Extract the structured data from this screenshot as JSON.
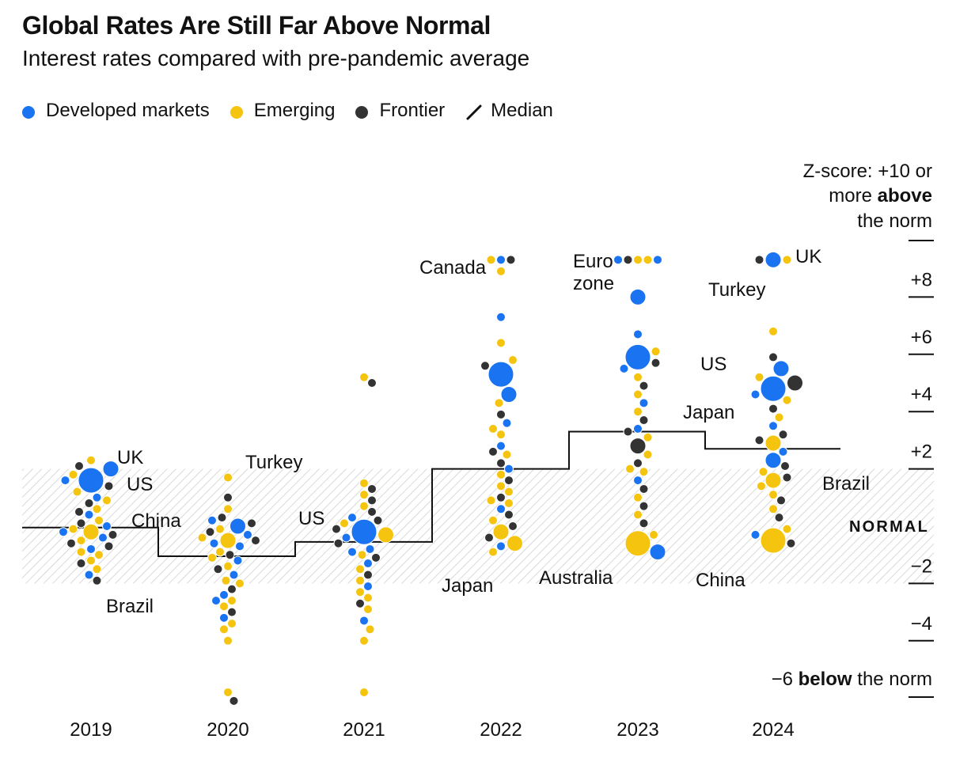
{
  "title": "Global Rates Are Still Far Above Normal",
  "subtitle": "Interest rates compared with pre-pandemic average",
  "legend": [
    {
      "label": "Developed markets",
      "color": "#1a73f0",
      "kind": "dot"
    },
    {
      "label": "Emerging",
      "color": "#f5c40f",
      "kind": "dot"
    },
    {
      "label": "Frontier",
      "color": "#333333",
      "kind": "dot"
    },
    {
      "label": "Median",
      "color": "#111111",
      "kind": "line"
    }
  ],
  "chart_data": {
    "type": "scatter",
    "categories": [
      "2019",
      "2020",
      "2021",
      "2022",
      "2023",
      "2024"
    ],
    "ylabel": "Z-score",
    "ylim": [
      -6,
      10
    ],
    "y_ticks": [
      "+8",
      "+6",
      "+4",
      "+2",
      "−2",
      "−4"
    ],
    "top_label": {
      "line1": "Z-score: +10 or",
      "line2a": "more ",
      "line2b": "above",
      "line3": "the norm"
    },
    "bottom_label": {
      "a": "−6 ",
      "b": "below",
      "c": " the norm"
    },
    "normal_band": {
      "label": "NORMAL",
      "range": [
        -2,
        2
      ]
    },
    "median": [
      -0.05,
      -1.05,
      -0.55,
      2.0,
      3.3,
      2.7
    ],
    "colors": {
      "developed": "#1a73f0",
      "emerging": "#f5c40f",
      "frontier": "#333333",
      "median": "#111111"
    },
    "series": [
      {
        "category": "2019",
        "points": [
          {
            "y": 2.0,
            "g": "developed",
            "s": 1,
            "label": "UK"
          },
          {
            "y": 1.6,
            "g": "developed",
            "s": 2,
            "label": "US"
          },
          {
            "y": -0.2,
            "g": "emerging",
            "s": 1,
            "label": "Brazil"
          },
          {
            "y": 2.3,
            "g": "emerging"
          },
          {
            "y": 2.1,
            "g": "frontier"
          },
          {
            "y": 1.8,
            "g": "emerging"
          },
          {
            "y": 1.6,
            "g": "developed"
          },
          {
            "y": 1.4,
            "g": "frontier"
          },
          {
            "y": 1.2,
            "g": "emerging"
          },
          {
            "y": 1.0,
            "g": "developed"
          },
          {
            "y": 0.8,
            "g": "frontier"
          },
          {
            "y": 0.6,
            "g": "emerging"
          },
          {
            "y": 0.4,
            "g": "developed"
          },
          {
            "y": 0.2,
            "g": "emerging"
          },
          {
            "y": 0.1,
            "g": "frontier"
          },
          {
            "y": 0.0,
            "g": "developed"
          },
          {
            "y": -0.1,
            "g": "emerging"
          },
          {
            "y": -0.3,
            "g": "frontier"
          },
          {
            "y": -0.4,
            "g": "developed"
          },
          {
            "y": -0.5,
            "g": "emerging"
          },
          {
            "y": -0.6,
            "g": "frontier"
          },
          {
            "y": -0.8,
            "g": "developed"
          },
          {
            "y": -1.0,
            "g": "emerging"
          },
          {
            "y": -1.2,
            "g": "emerging"
          },
          {
            "y": -1.3,
            "g": "frontier"
          },
          {
            "y": -1.5,
            "g": "emerging"
          },
          {
            "y": -1.7,
            "g": "developed"
          },
          {
            "y": -1.9,
            "g": "frontier"
          },
          {
            "y": -0.7,
            "g": "frontier"
          },
          {
            "y": 0.5,
            "g": "frontier"
          },
          {
            "y": -0.2,
            "g": "developed"
          },
          {
            "y": 0.9,
            "g": "emerging"
          },
          {
            "y": -0.9,
            "g": "emerging"
          }
        ]
      },
      {
        "category": "2020",
        "points": [
          {
            "y": 1.7,
            "g": "emerging",
            "label": "Turkey"
          },
          {
            "y": -0.5,
            "g": "emerging",
            "s": 1,
            "label": "China"
          },
          {
            "y": 1.0,
            "g": "frontier"
          },
          {
            "y": 0.6,
            "g": "emerging"
          },
          {
            "y": 0.3,
            "g": "frontier"
          },
          {
            "y": 0.2,
            "g": "developed"
          },
          {
            "y": 0.0,
            "g": "developed",
            "s": 1
          },
          {
            "y": -0.1,
            "g": "emerging"
          },
          {
            "y": -0.2,
            "g": "frontier"
          },
          {
            "y": -0.3,
            "g": "developed"
          },
          {
            "y": -0.4,
            "g": "emerging"
          },
          {
            "y": -0.5,
            "g": "frontier"
          },
          {
            "y": -0.7,
            "g": "developed"
          },
          {
            "y": -0.9,
            "g": "emerging"
          },
          {
            "y": -1.0,
            "g": "frontier"
          },
          {
            "y": -1.2,
            "g": "developed"
          },
          {
            "y": -1.4,
            "g": "emerging"
          },
          {
            "y": -1.5,
            "g": "frontier"
          },
          {
            "y": -1.7,
            "g": "developed"
          },
          {
            "y": -1.9,
            "g": "emerging"
          },
          {
            "y": -2.0,
            "g": "emerging"
          },
          {
            "y": -2.2,
            "g": "frontier"
          },
          {
            "y": -2.4,
            "g": "developed"
          },
          {
            "y": -2.6,
            "g": "emerging"
          },
          {
            "y": -2.8,
            "g": "emerging"
          },
          {
            "y": -3.0,
            "g": "frontier"
          },
          {
            "y": -3.2,
            "g": "developed"
          },
          {
            "y": -3.4,
            "g": "emerging"
          },
          {
            "y": -3.6,
            "g": "emerging"
          },
          {
            "y": -4.0,
            "g": "emerging"
          },
          {
            "y": -5.8,
            "g": "emerging"
          },
          {
            "y": -6.1,
            "g": "frontier"
          },
          {
            "y": 0.1,
            "g": "frontier"
          },
          {
            "y": -0.6,
            "g": "developed"
          },
          {
            "y": -1.1,
            "g": "emerging"
          },
          {
            "y": -2.6,
            "g": "developed"
          }
        ]
      },
      {
        "category": "2021",
        "points": [
          {
            "y": -0.2,
            "g": "developed",
            "s": 2,
            "label": "US"
          },
          {
            "y": 5.2,
            "g": "emerging"
          },
          {
            "y": 5.0,
            "g": "frontier"
          },
          {
            "y": 1.5,
            "g": "emerging"
          },
          {
            "y": 1.3,
            "g": "frontier"
          },
          {
            "y": 1.1,
            "g": "emerging"
          },
          {
            "y": 0.9,
            "g": "frontier"
          },
          {
            "y": 0.7,
            "g": "emerging"
          },
          {
            "y": 0.5,
            "g": "frontier"
          },
          {
            "y": 0.3,
            "g": "developed"
          },
          {
            "y": 0.1,
            "g": "emerging"
          },
          {
            "y": -0.1,
            "g": "frontier"
          },
          {
            "y": -0.3,
            "g": "emerging",
            "s": 1
          },
          {
            "y": -0.4,
            "g": "developed"
          },
          {
            "y": -0.6,
            "g": "frontier"
          },
          {
            "y": -0.8,
            "g": "developed"
          },
          {
            "y": -1.0,
            "g": "emerging"
          },
          {
            "y": -1.1,
            "g": "frontier"
          },
          {
            "y": -1.3,
            "g": "developed"
          },
          {
            "y": -1.5,
            "g": "emerging"
          },
          {
            "y": -1.7,
            "g": "frontier"
          },
          {
            "y": -1.9,
            "g": "emerging"
          },
          {
            "y": -2.1,
            "g": "developed"
          },
          {
            "y": -2.3,
            "g": "emerging"
          },
          {
            "y": -2.5,
            "g": "emerging"
          },
          {
            "y": -2.7,
            "g": "frontier"
          },
          {
            "y": -2.9,
            "g": "emerging"
          },
          {
            "y": -3.3,
            "g": "developed"
          },
          {
            "y": -3.6,
            "g": "emerging"
          },
          {
            "y": -4.0,
            "g": "emerging"
          },
          {
            "y": -5.8,
            "g": "emerging"
          },
          {
            "y": 0.2,
            "g": "frontier"
          },
          {
            "y": -0.9,
            "g": "developed"
          }
        ]
      },
      {
        "category": "2022",
        "points": [
          {
            "y": 8.9,
            "g": "emerging"
          },
          {
            "y": 9.3,
            "g": "developed"
          },
          {
            "y": 9.3,
            "g": "frontier"
          },
          {
            "y": 9.3,
            "g": "emerging"
          },
          {
            "y": 7.3,
            "g": "developed",
            "label": "Canada"
          },
          {
            "y": 5.3,
            "g": "developed",
            "s": 2
          },
          {
            "y": 4.6,
            "g": "developed",
            "s": 1
          },
          {
            "y": 6.4,
            "g": "emerging"
          },
          {
            "y": 5.8,
            "g": "emerging"
          },
          {
            "y": 5.6,
            "g": "frontier"
          },
          {
            "y": 4.3,
            "g": "emerging"
          },
          {
            "y": 3.9,
            "g": "frontier"
          },
          {
            "y": 3.6,
            "g": "developed"
          },
          {
            "y": 3.2,
            "g": "emerging"
          },
          {
            "y": 2.8,
            "g": "developed"
          },
          {
            "y": 2.5,
            "g": "emerging"
          },
          {
            "y": 2.2,
            "g": "frontier"
          },
          {
            "y": 2.0,
            "g": "developed"
          },
          {
            "y": 1.8,
            "g": "emerging"
          },
          {
            "y": 1.6,
            "g": "frontier"
          },
          {
            "y": 1.4,
            "g": "emerging"
          },
          {
            "y": 1.2,
            "g": "emerging"
          },
          {
            "y": 1.0,
            "g": "frontier"
          },
          {
            "y": 0.8,
            "g": "emerging"
          },
          {
            "y": 0.6,
            "g": "developed",
            "label": "Australia"
          },
          {
            "y": 0.4,
            "g": "frontier"
          },
          {
            "y": 0.2,
            "g": "emerging"
          },
          {
            "y": 0.0,
            "g": "frontier"
          },
          {
            "y": -0.2,
            "g": "emerging",
            "s": 1
          },
          {
            "y": -0.4,
            "g": "frontier"
          },
          {
            "y": -0.6,
            "g": "emerging",
            "s": 1
          },
          {
            "y": -0.7,
            "g": "developed",
            "label": "Japan"
          },
          {
            "y": -0.9,
            "g": "emerging"
          },
          {
            "y": 2.6,
            "g": "frontier"
          },
          {
            "y": 3.4,
            "g": "emerging"
          },
          {
            "y": 0.9,
            "g": "emerging"
          }
        ]
      },
      {
        "category": "2023",
        "points": [
          {
            "y": 9.3,
            "g": "emerging"
          },
          {
            "y": 9.3,
            "g": "emerging"
          },
          {
            "y": 9.3,
            "g": "frontier"
          },
          {
            "y": 9.3,
            "g": "developed"
          },
          {
            "y": 9.3,
            "g": "developed"
          },
          {
            "y": 8.0,
            "g": "developed",
            "s": 1,
            "label": "Euro zone"
          },
          {
            "y": 6.7,
            "g": "developed"
          },
          {
            "y": 5.9,
            "g": "developed",
            "s": 2
          },
          {
            "y": 6.1,
            "g": "emerging"
          },
          {
            "y": 5.7,
            "g": "frontier"
          },
          {
            "y": 5.5,
            "g": "developed"
          },
          {
            "y": 5.2,
            "g": "emerging"
          },
          {
            "y": 4.9,
            "g": "frontier"
          },
          {
            "y": 4.6,
            "g": "emerging"
          },
          {
            "y": 4.3,
            "g": "developed"
          },
          {
            "y": 4.0,
            "g": "emerging"
          },
          {
            "y": 3.7,
            "g": "frontier"
          },
          {
            "y": 3.4,
            "g": "developed"
          },
          {
            "y": 3.1,
            "g": "emerging"
          },
          {
            "y": 2.8,
            "g": "frontier",
            "s": 1
          },
          {
            "y": 2.5,
            "g": "emerging"
          },
          {
            "y": 2.2,
            "g": "frontier"
          },
          {
            "y": 1.9,
            "g": "emerging"
          },
          {
            "y": 1.6,
            "g": "developed"
          },
          {
            "y": 1.3,
            "g": "frontier"
          },
          {
            "y": 1.0,
            "g": "emerging"
          },
          {
            "y": 0.7,
            "g": "frontier"
          },
          {
            "y": 0.4,
            "g": "emerging"
          },
          {
            "y": 0.1,
            "g": "frontier"
          },
          {
            "y": -0.3,
            "g": "emerging"
          },
          {
            "y": -0.6,
            "g": "emerging",
            "s": 2
          },
          {
            "y": -0.9,
            "g": "developed",
            "s": 1
          },
          {
            "y": 2.0,
            "g": "emerging"
          },
          {
            "y": 3.3,
            "g": "frontier"
          }
        ]
      },
      {
        "category": "2024",
        "points": [
          {
            "y": 9.3,
            "g": "developed",
            "s": 1,
            "label": "UK"
          },
          {
            "y": 9.3,
            "g": "emerging"
          },
          {
            "y": 9.3,
            "g": "frontier"
          },
          {
            "y": 6.8,
            "g": "emerging",
            "label": "Turkey"
          },
          {
            "y": 4.8,
            "g": "developed",
            "s": 2,
            "label": "US"
          },
          {
            "y": 5.5,
            "g": "developed",
            "s": 1
          },
          {
            "y": 5.9,
            "g": "frontier"
          },
          {
            "y": 5.2,
            "g": "emerging"
          },
          {
            "y": 5.0,
            "g": "frontier",
            "s": 1
          },
          {
            "y": 4.6,
            "g": "developed"
          },
          {
            "y": 4.4,
            "g": "emerging"
          },
          {
            "y": 4.1,
            "g": "frontier"
          },
          {
            "y": 3.8,
            "g": "emerging"
          },
          {
            "y": 3.5,
            "g": "developed"
          },
          {
            "y": 3.2,
            "g": "frontier"
          },
          {
            "y": 2.9,
            "g": "emerging",
            "s": 1
          },
          {
            "y": 2.6,
            "g": "developed"
          },
          {
            "y": 2.3,
            "g": "developed",
            "s": 1,
            "label": "Japan"
          },
          {
            "y": 2.1,
            "g": "frontier"
          },
          {
            "y": 1.9,
            "g": "emerging"
          },
          {
            "y": 1.7,
            "g": "frontier"
          },
          {
            "y": 1.6,
            "g": "emerging",
            "s": 1,
            "label": "Brazil"
          },
          {
            "y": 1.4,
            "g": "emerging"
          },
          {
            "y": 1.1,
            "g": "emerging"
          },
          {
            "y": 0.9,
            "g": "frontier"
          },
          {
            "y": 0.6,
            "g": "emerging"
          },
          {
            "y": 0.3,
            "g": "frontier"
          },
          {
            "y": -0.1,
            "g": "emerging"
          },
          {
            "y": -0.5,
            "g": "emerging",
            "s": 2,
            "label": "China"
          },
          {
            "y": -0.6,
            "g": "frontier"
          },
          {
            "y": -0.3,
            "g": "developed"
          },
          {
            "y": 3.0,
            "g": "frontier"
          }
        ]
      }
    ]
  }
}
